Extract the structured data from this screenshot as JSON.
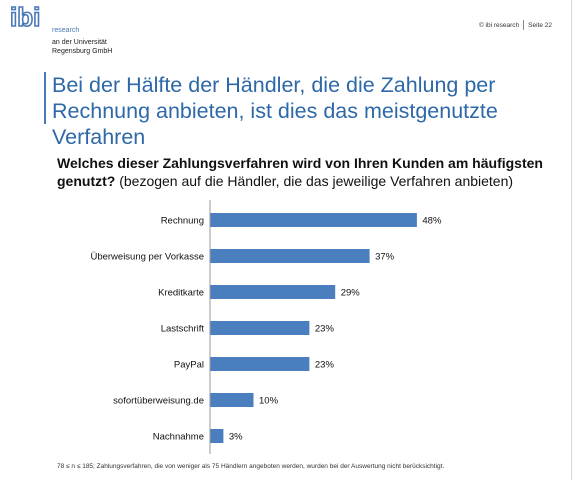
{
  "header": {
    "logo_text": "ibi",
    "org_line1": "research",
    "org_line2": "an der Universität",
    "org_line3": "Regensburg GmbH",
    "copyright": "© ibi research",
    "page_label": "Seite 22"
  },
  "slide": {
    "title": "Bei der Hälfte der Händler, die die Zahlung per Rechnung anbieten, ist dies das meistgenutzte Verfahren",
    "question_bold": "Welches dieser Zahlungsverfahren wird von Ihren Kunden am häufigsten genutzt?",
    "question_rest": " (bezogen auf die Händler, die das jeweilige Verfahren anbieten)",
    "footnote": "78 ≤ n ≤ 185; Zahlungsverfahren, die von weniger als 75 Händlern angeboten werden, wurden bei der Auswertung nicht berücksichtigt."
  },
  "colors": {
    "accent": "#2d68a8",
    "bar": "#4a7ebf"
  },
  "chart_data": {
    "type": "bar",
    "orientation": "horizontal",
    "categories": [
      "Rechnung",
      "Überweisung per Vorkasse",
      "Kreditkarte",
      "Lastschrift",
      "PayPal",
      "sofortüberweisung.de",
      "Nachnahme"
    ],
    "values": [
      48,
      37,
      29,
      23,
      23,
      10,
      3
    ],
    "value_labels": [
      "48%",
      "37%",
      "29%",
      "23%",
      "23%",
      "10%",
      "3%"
    ],
    "unit": "%",
    "xlim": [
      0,
      100
    ],
    "grid": false,
    "legend": "none"
  }
}
